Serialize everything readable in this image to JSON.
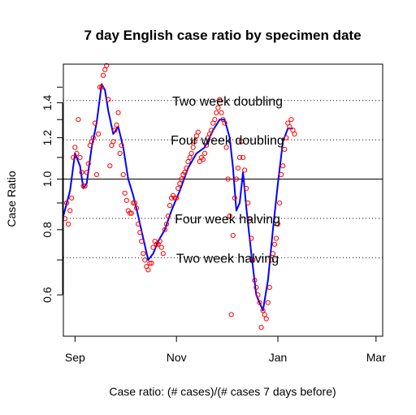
{
  "chart_data": {
    "type": "scatter",
    "title": "7 day English case ratio by specimen date",
    "xlabel": "Case ratio: (# cases)/(# cases 7 days before)",
    "ylabel": "Case Ratio",
    "x_unit": "date",
    "y_scale": "log",
    "xlim": [
      "2020-08-25",
      "2021-03-05"
    ],
    "ylim": [
      0.5,
      1.66
    ],
    "x_ticks": [
      {
        "label": "Sep",
        "date": "2020-09-01"
      },
      {
        "label": "Nov",
        "date": "2020-11-01"
      },
      {
        "label": "Jan",
        "date": "2021-01-01"
      },
      {
        "label": "Mar",
        "date": "2021-03-01"
      }
    ],
    "y_ticks": [
      {
        "label": "0.6",
        "value": 0.6
      },
      {
        "label": "0.8",
        "value": 0.8
      },
      {
        "label": "1.0",
        "value": 1.0
      },
      {
        "label": "1.2",
        "value": 1.2
      },
      {
        "label": "1.4",
        "value": 1.4
      }
    ],
    "reference_lines": [
      {
        "label": "Two week doubling",
        "value": 1.414,
        "style": "dotted"
      },
      {
        "label": "Four week doubling",
        "value": 1.189,
        "style": "dotted"
      },
      {
        "label": "",
        "value": 1.0,
        "style": "solid"
      },
      {
        "label": "Four week halving",
        "value": 0.841,
        "style": "dotted"
      },
      {
        "label": "Two week halving",
        "value": 0.707,
        "style": "dotted"
      }
    ],
    "series": [
      {
        "kind": "points",
        "color": "#ff0000",
        "points": [
          [
            "2020-08-26",
            0.84
          ],
          [
            "2020-08-27",
            0.9
          ],
          [
            "2020-08-28",
            0.82
          ],
          [
            "2020-08-29",
            0.87
          ],
          [
            "2020-08-30",
            0.92
          ],
          [
            "2020-08-31",
            1.1
          ],
          [
            "2020-09-01",
            1.15
          ],
          [
            "2020-09-02",
            1.12
          ],
          [
            "2020-09-03",
            1.3
          ],
          [
            "2020-09-04",
            1.1
          ],
          [
            "2020-09-05",
            1.03
          ],
          [
            "2020-09-06",
            0.97
          ],
          [
            "2020-09-07",
            0.97
          ],
          [
            "2020-09-08",
            1.03
          ],
          [
            "2020-09-09",
            1.07
          ],
          [
            "2020-09-10",
            1.16
          ],
          [
            "2020-09-11",
            1.18
          ],
          [
            "2020-09-12",
            1.2
          ],
          [
            "2020-09-13",
            1.28
          ],
          [
            "2020-09-14",
            1.02
          ],
          [
            "2020-09-15",
            1.22
          ],
          [
            "2020-09-16",
            1.5
          ],
          [
            "2020-09-17",
            1.5
          ],
          [
            "2020-09-18",
            1.58
          ],
          [
            "2020-09-19",
            1.62
          ],
          [
            "2020-09-20",
            1.65
          ],
          [
            "2020-09-21",
            1.42
          ],
          [
            "2020-09-22",
            1.06
          ],
          [
            "2020-09-23",
            1.16
          ],
          [
            "2020-09-24",
            1.18
          ],
          [
            "2020-09-25",
            1.24
          ],
          [
            "2020-09-26",
            1.27
          ],
          [
            "2020-09-27",
            1.34
          ],
          [
            "2020-09-28",
            1.12
          ],
          [
            "2020-09-29",
            1.16
          ],
          [
            "2020-09-30",
            1.02
          ],
          [
            "2020-10-01",
            0.94
          ],
          [
            "2020-10-02",
            0.91
          ],
          [
            "2020-10-03",
            0.87
          ],
          [
            "2020-10-04",
            0.86
          ],
          [
            "2020-10-05",
            0.86
          ],
          [
            "2020-10-06",
            0.9
          ],
          [
            "2020-10-07",
            0.9
          ],
          [
            "2020-10-08",
            0.88
          ],
          [
            "2020-10-09",
            0.82
          ],
          [
            "2020-10-10",
            0.79
          ],
          [
            "2020-10-11",
            0.76
          ],
          [
            "2020-10-12",
            0.72
          ],
          [
            "2020-10-13",
            0.7
          ],
          [
            "2020-10-14",
            0.68
          ],
          [
            "2020-10-15",
            0.67
          ],
          [
            "2020-10-16",
            0.69
          ],
          [
            "2020-10-17",
            0.69
          ],
          [
            "2020-10-18",
            0.74
          ],
          [
            "2020-10-19",
            0.76
          ],
          [
            "2020-10-20",
            0.75
          ],
          [
            "2020-10-21",
            0.75
          ],
          [
            "2020-10-22",
            0.76
          ],
          [
            "2020-10-23",
            0.74
          ],
          [
            "2020-10-24",
            0.72
          ],
          [
            "2020-10-25",
            0.8
          ],
          [
            "2020-10-26",
            0.82
          ],
          [
            "2020-10-27",
            0.85
          ],
          [
            "2020-10-28",
            0.89
          ],
          [
            "2020-10-29",
            0.92
          ],
          [
            "2020-10-30",
            0.93
          ],
          [
            "2020-10-31",
            0.92
          ],
          [
            "2020-11-01",
            0.92
          ],
          [
            "2020-11-02",
            0.96
          ],
          [
            "2020-11-03",
            0.98
          ],
          [
            "2020-11-04",
            1.0
          ],
          [
            "2020-11-05",
            1.02
          ],
          [
            "2020-11-06",
            1.03
          ],
          [
            "2020-11-07",
            1.05
          ],
          [
            "2020-11-08",
            1.08
          ],
          [
            "2020-11-09",
            1.1
          ],
          [
            "2020-11-10",
            1.12
          ],
          [
            "2020-11-11",
            1.15
          ],
          [
            "2020-11-12",
            1.18
          ],
          [
            "2020-11-13",
            1.21
          ],
          [
            "2020-11-14",
            1.23
          ],
          [
            "2020-11-15",
            1.08
          ],
          [
            "2020-11-16",
            1.1
          ],
          [
            "2020-11-17",
            1.09
          ],
          [
            "2020-11-18",
            1.12
          ],
          [
            "2020-11-19",
            1.16
          ],
          [
            "2020-11-20",
            1.2
          ],
          [
            "2020-11-21",
            1.22
          ],
          [
            "2020-11-22",
            1.24
          ],
          [
            "2020-11-23",
            1.28
          ],
          [
            "2020-11-24",
            1.3
          ],
          [
            "2020-11-25",
            1.34
          ],
          [
            "2020-11-26",
            1.37
          ],
          [
            "2020-11-27",
            1.42
          ],
          [
            "2020-11-28",
            1.34
          ],
          [
            "2020-11-29",
            1.3
          ],
          [
            "2020-11-30",
            1.28
          ],
          [
            "2020-12-01",
            1.15
          ],
          [
            "2020-12-02",
            1.0
          ],
          [
            "2020-12-03",
            0.85
          ],
          [
            "2020-12-04",
            0.55
          ],
          [
            "2020-12-05",
            0.78
          ],
          [
            "2020-12-06",
            0.92
          ],
          [
            "2020-12-07",
            1.0
          ],
          [
            "2020-12-08",
            1.05
          ],
          [
            "2020-12-09",
            1.1
          ],
          [
            "2020-12-10",
            1.18
          ],
          [
            "2020-12-11",
            1.1
          ],
          [
            "2020-12-12",
            1.04
          ],
          [
            "2020-12-13",
            0.96
          ],
          [
            "2020-12-14",
            0.9
          ],
          [
            "2020-12-15",
            0.84
          ],
          [
            "2020-12-16",
            0.77
          ],
          [
            "2020-12-17",
            0.7
          ],
          [
            "2020-12-18",
            0.64
          ],
          [
            "2020-12-19",
            0.62
          ],
          [
            "2020-12-20",
            0.6
          ],
          [
            "2020-12-21",
            0.58
          ],
          [
            "2020-12-22",
            0.52
          ],
          [
            "2020-12-23",
            0.56
          ],
          [
            "2020-12-24",
            0.55
          ],
          [
            "2020-12-25",
            0.54
          ],
          [
            "2020-12-26",
            0.58
          ],
          [
            "2020-12-27",
            0.62
          ],
          [
            "2020-12-28",
            0.7
          ],
          [
            "2020-12-29",
            0.72
          ],
          [
            "2020-12-30",
            0.75
          ],
          [
            "2020-12-31",
            0.77
          ],
          [
            "2021-01-01",
            0.82
          ],
          [
            "2021-01-02",
            0.9
          ],
          [
            "2021-01-03",
            1.02
          ],
          [
            "2021-01-04",
            1.06
          ],
          [
            "2021-01-05",
            1.14
          ],
          [
            "2021-01-06",
            1.2
          ],
          [
            "2021-01-07",
            1.28
          ],
          [
            "2021-01-08",
            1.26
          ],
          [
            "2021-01-09",
            1.3
          ],
          [
            "2021-01-10",
            1.24
          ],
          [
            "2021-01-11",
            1.22
          ]
        ]
      },
      {
        "kind": "line",
        "color": "#0000ff",
        "points": [
          [
            "2020-08-25",
            0.85
          ],
          [
            "2020-08-29",
            0.95
          ],
          [
            "2020-09-01",
            1.12
          ],
          [
            "2020-09-04",
            1.06
          ],
          [
            "2020-09-06",
            0.96
          ],
          [
            "2020-09-08",
            0.98
          ],
          [
            "2020-09-11",
            1.15
          ],
          [
            "2020-09-14",
            1.28
          ],
          [
            "2020-09-17",
            1.52
          ],
          [
            "2020-09-19",
            1.48
          ],
          [
            "2020-09-21",
            1.35
          ],
          [
            "2020-09-24",
            1.22
          ],
          [
            "2020-09-27",
            1.26
          ],
          [
            "2020-09-30",
            1.15
          ],
          [
            "2020-10-03",
            1.0
          ],
          [
            "2020-10-06",
            0.93
          ],
          [
            "2020-10-09",
            0.85
          ],
          [
            "2020-10-12",
            0.77
          ],
          [
            "2020-10-15",
            0.7
          ],
          [
            "2020-10-18",
            0.72
          ],
          [
            "2020-10-21",
            0.76
          ],
          [
            "2020-10-25",
            0.8
          ],
          [
            "2020-10-29",
            0.87
          ],
          [
            "2020-11-03",
            0.95
          ],
          [
            "2020-11-08",
            1.05
          ],
          [
            "2020-11-13",
            1.12
          ],
          [
            "2020-11-18",
            1.15
          ],
          [
            "2020-11-23",
            1.24
          ],
          [
            "2020-11-27",
            1.3
          ],
          [
            "2020-11-30",
            1.3
          ],
          [
            "2020-12-03",
            1.2
          ],
          [
            "2020-12-05",
            1.05
          ],
          [
            "2020-12-07",
            0.87
          ],
          [
            "2020-12-09",
            0.9
          ],
          [
            "2020-12-11",
            1.03
          ],
          [
            "2020-12-13",
            0.88
          ],
          [
            "2020-12-16",
            0.72
          ],
          [
            "2020-12-19",
            0.6
          ],
          [
            "2020-12-23",
            0.56
          ],
          [
            "2020-12-26",
            0.64
          ],
          [
            "2020-12-29",
            0.8
          ],
          [
            "2021-01-01",
            0.98
          ],
          [
            "2021-01-04",
            1.18
          ],
          [
            "2021-01-07",
            1.25
          ],
          [
            "2021-01-10",
            1.25
          ]
        ]
      }
    ]
  }
}
